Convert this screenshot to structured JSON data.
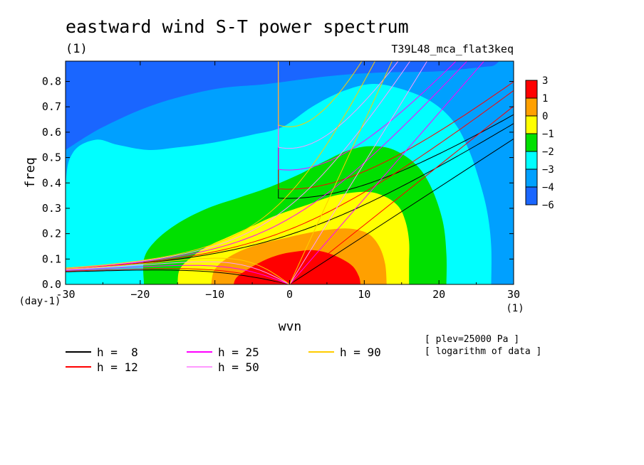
{
  "chart_data": {
    "type": "heatmap",
    "title": "eastward wind S-T power spectrum",
    "subtitle_left": "(1)",
    "subtitle_right": "T39L48_mca_flat3keq",
    "xlabel": "wvn",
    "ylabel": "freq",
    "x_unit": "(1)",
    "y_unit": "(day-1)",
    "xlim": [
      -30,
      30
    ],
    "ylim": [
      0,
      0.88
    ],
    "x_ticks": [
      -30,
      -20,
      -10,
      0,
      10,
      20,
      30
    ],
    "x_tick_labels": [
      "-30",
      "−20",
      "−10",
      "0",
      "10",
      "20",
      "30"
    ],
    "y_ticks": [
      0,
      0.1,
      0.2,
      0.3,
      0.4,
      0.5,
      0.6,
      0.7,
      0.8
    ],
    "y_tick_labels": [
      "0.0",
      "0.1",
      "0.2",
      "0.3",
      "0.4",
      "0.5",
      "0.6",
      "0.7",
      "0.8"
    ],
    "colorbar": {
      "levels": [
        -6,
        -4,
        -3,
        -2,
        -1,
        0,
        1,
        3
      ],
      "level_labels": [
        "−6",
        "−4",
        "−3",
        "−2",
        "−1",
        "0",
        "1",
        "3"
      ],
      "colors": [
        "#1a66ff",
        "#00a0ff",
        "#00ffff",
        "#00e000",
        "#ffff00",
        "#ffa000",
        "#ff0000"
      ]
    },
    "contour_fill": [
      {
        "level_index": 1,
        "color": "#00a0ff",
        "boundary": [
          [
            -30,
            0.53
          ],
          [
            -25,
            0.62
          ],
          [
            -18,
            0.71
          ],
          [
            -10,
            0.77
          ],
          [
            -3,
            0.79
          ],
          [
            5,
            0.82
          ],
          [
            12,
            0.835
          ],
          [
            20,
            0.84
          ],
          [
            27,
            0.86
          ],
          [
            30,
            0.86
          ],
          [
            30,
            0
          ],
          [
            -30,
            0
          ]
        ]
      },
      {
        "level_index": 2,
        "color": "#00ffff",
        "boundary": [
          [
            -30,
            0.0
          ],
          [
            -30,
            0.38
          ],
          [
            -29,
            0.52
          ],
          [
            -26,
            0.57
          ],
          [
            -23,
            0.55
          ],
          [
            -19,
            0.53
          ],
          [
            -15,
            0.54
          ],
          [
            -10,
            0.56
          ],
          [
            -5,
            0.59
          ],
          [
            -1,
            0.62
          ],
          [
            3,
            0.7
          ],
          [
            7,
            0.76
          ],
          [
            11,
            0.79
          ],
          [
            15,
            0.77
          ],
          [
            19,
            0.72
          ],
          [
            22,
            0.64
          ],
          [
            24,
            0.53
          ],
          [
            25.5,
            0.4
          ],
          [
            26.5,
            0.28
          ],
          [
            27,
            0.15
          ],
          [
            27,
            0.0
          ]
        ]
      },
      {
        "level_index": 3,
        "color": "#00e000",
        "boundary": [
          [
            -19.5,
            0.0
          ],
          [
            -19.5,
            0.1
          ],
          [
            -18,
            0.17
          ],
          [
            -15,
            0.24
          ],
          [
            -11,
            0.3
          ],
          [
            -7,
            0.34
          ],
          [
            -3,
            0.38
          ],
          [
            1,
            0.43
          ],
          [
            5,
            0.49
          ],
          [
            8,
            0.53
          ],
          [
            11,
            0.545
          ],
          [
            14,
            0.53
          ],
          [
            17,
            0.47
          ],
          [
            19,
            0.38
          ],
          [
            20.5,
            0.25
          ],
          [
            21,
            0.12
          ],
          [
            21,
            0.0
          ]
        ]
      },
      {
        "level_index": 4,
        "color": "#ffff00",
        "boundary": [
          [
            -15,
            0.0
          ],
          [
            -14.7,
            0.06
          ],
          [
            -13,
            0.11
          ],
          [
            -11,
            0.15
          ],
          [
            -8,
            0.19
          ],
          [
            -5,
            0.23
          ],
          [
            -2,
            0.27
          ],
          [
            2,
            0.31
          ],
          [
            6,
            0.35
          ],
          [
            10,
            0.365
          ],
          [
            12.5,
            0.35
          ],
          [
            14.5,
            0.31
          ],
          [
            15.5,
            0.25
          ],
          [
            16,
            0.17
          ],
          [
            16,
            0.08
          ],
          [
            16,
            0.0
          ]
        ]
      },
      {
        "level_index": 5,
        "color": "#ffa000",
        "boundary": [
          [
            -10.5,
            0.0
          ],
          [
            -10,
            0.06
          ],
          [
            -8,
            0.11
          ],
          [
            -5,
            0.15
          ],
          [
            -1,
            0.18
          ],
          [
            2,
            0.2
          ],
          [
            5,
            0.215
          ],
          [
            8,
            0.22
          ],
          [
            10.5,
            0.2
          ],
          [
            12,
            0.15
          ],
          [
            12.8,
            0.08
          ],
          [
            13,
            0.0
          ]
        ]
      },
      {
        "level_index": 6,
        "color": "#ff0000",
        "boundary": [
          [
            -7.5,
            0.0
          ],
          [
            -7,
            0.03
          ],
          [
            -5,
            0.07
          ],
          [
            -3,
            0.1
          ],
          [
            -1,
            0.12
          ],
          [
            1,
            0.13
          ],
          [
            3,
            0.135
          ],
          [
            5,
            0.125
          ],
          [
            7,
            0.1
          ],
          [
            8.5,
            0.07
          ],
          [
            9.3,
            0.03
          ],
          [
            9.5,
            0.0
          ]
        ]
      }
    ],
    "series": [
      {
        "name": "h =  8",
        "color": "#000000",
        "values": [
          8
        ]
      },
      {
        "name": "h = 12",
        "color": "#ff0000",
        "values": [
          12
        ]
      },
      {
        "name": "h = 25",
        "color": "#ff00ff",
        "values": [
          25
        ]
      },
      {
        "name": "h = 50",
        "color": "#ff99ff",
        "values": [
          50
        ]
      },
      {
        "name": "h = 90",
        "color": "#ffcc00",
        "values": [
          90
        ]
      }
    ],
    "annotations": [
      "[ plev=25000 Pa ]",
      "[ logarithm of data ]"
    ]
  }
}
